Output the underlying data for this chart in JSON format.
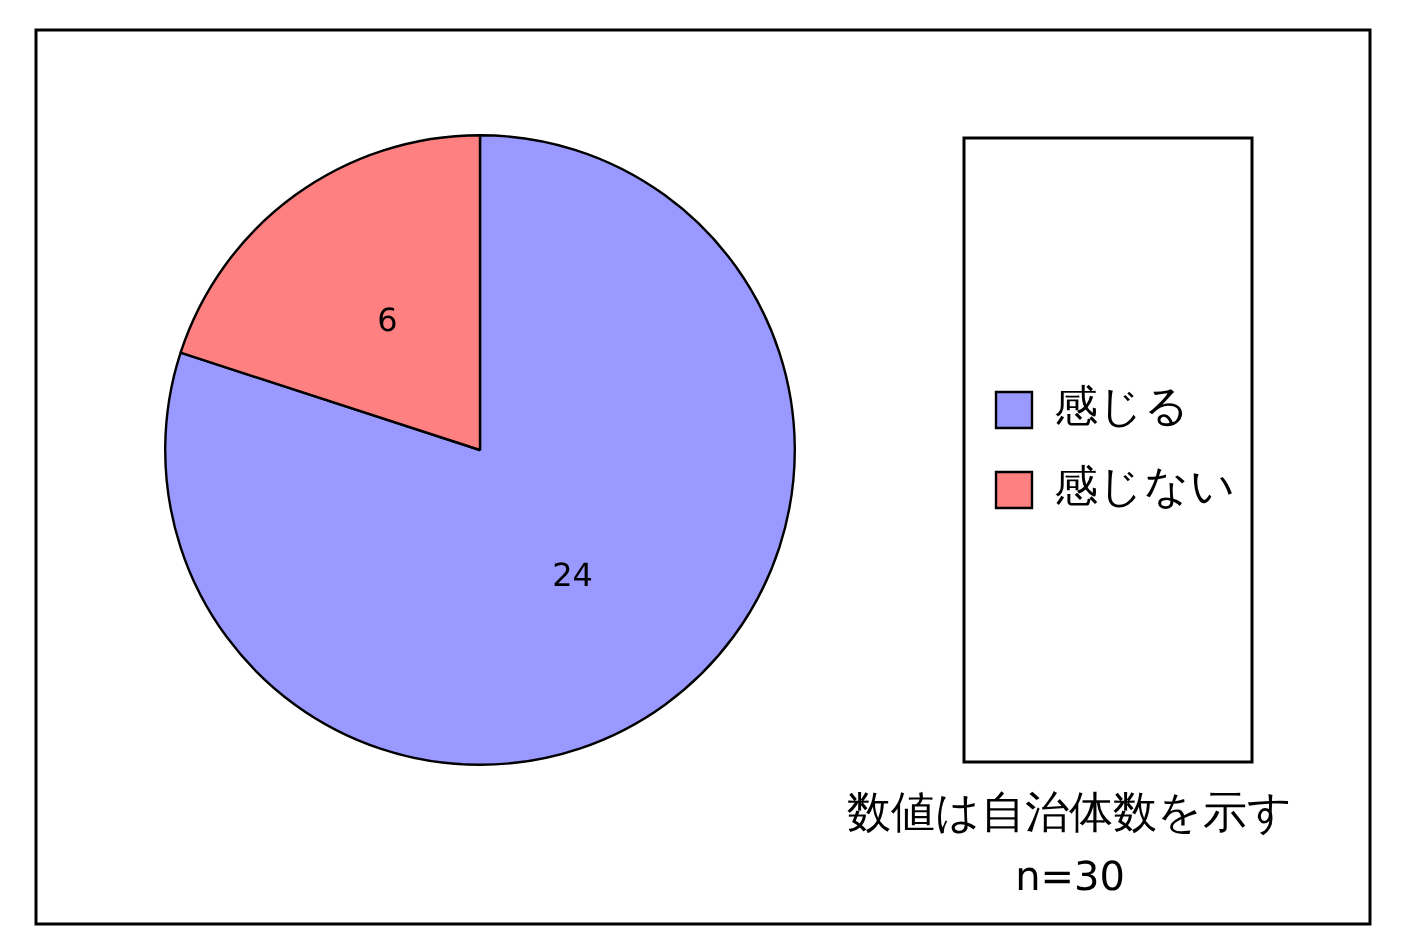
{
  "chart_data": {
    "type": "pie",
    "categories": [
      "感じる",
      "感じない"
    ],
    "values": [
      24,
      6
    ],
    "colors": [
      "#9999ff",
      "#ff8080"
    ],
    "data_labels": true,
    "legend": "right",
    "annotations": [
      "数値は自治体数を示す",
      "n=30"
    ]
  }
}
